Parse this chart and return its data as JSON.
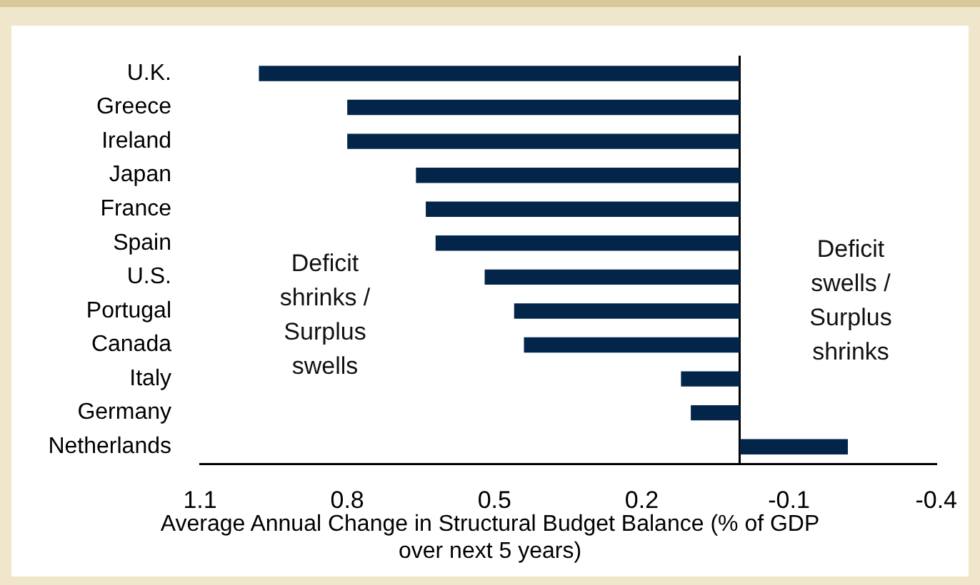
{
  "chart_data": {
    "type": "bar",
    "orientation": "horizontal",
    "categories": [
      "U.K.",
      "Greece",
      "Ireland",
      "Japan",
      "France",
      "Spain",
      "U.S.",
      "Portugal",
      "Canada",
      "Italy",
      "Germany",
      "Netherlands"
    ],
    "series": [
      {
        "color": "#03254a",
        "values": [
          0.98,
          0.8,
          0.8,
          0.66,
          0.64,
          0.62,
          0.52,
          0.46,
          0.44,
          0.12,
          0.1,
          -0.22
        ]
      }
    ],
    "xlim": [
      1.1,
      -0.4
    ],
    "xticks": [
      1.1,
      0.8,
      0.5,
      0.2,
      -0.1,
      -0.4
    ],
    "xlabel": "Average Annual Change in Structural Budget Balance (% of GDP over next 5 years)",
    "annotations": [
      "Deficit shrinks / Surplus swells",
      "Deficit swells / Surplus shrinks"
    ]
  }
}
